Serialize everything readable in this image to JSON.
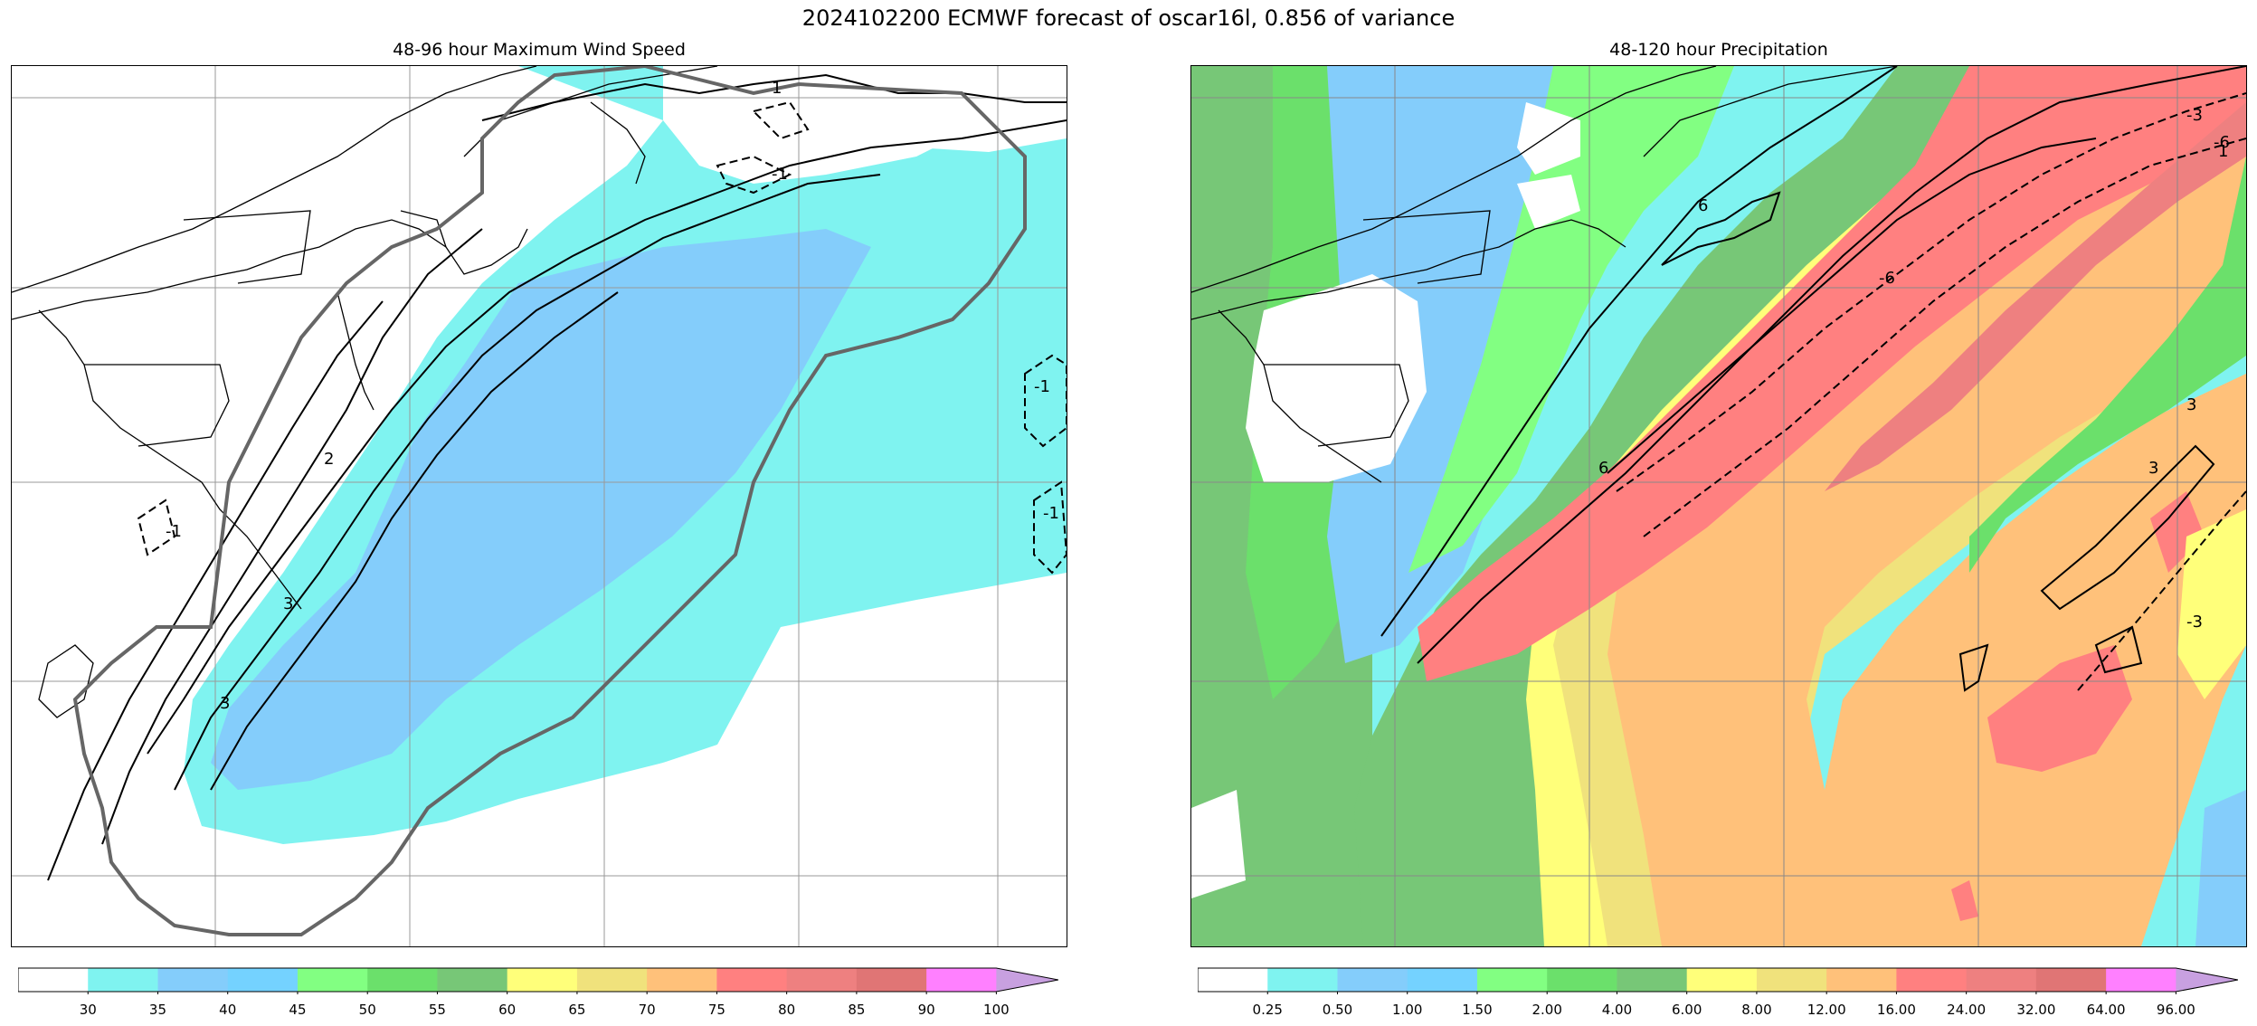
{
  "figure_title": "2024102200 ECMWF forecast of oscar16l, 0.856 of variance",
  "left_panel": {
    "title": "48-96 hour Maximum Wind Speed",
    "contour_labels": [
      "-1",
      "-1",
      "-1",
      "-1",
      "1",
      "2",
      "3",
      "3"
    ],
    "colorbar": {
      "ticks": [
        "30",
        "35",
        "40",
        "45",
        "50",
        "55",
        "60",
        "65",
        "70",
        "75",
        "80",
        "85",
        "90",
        "100"
      ],
      "colors": [
        "#ffffff",
        "#7ff3f0",
        "#84cdfb",
        "#74d2ff",
        "#82ff82",
        "#6be06b",
        "#77c777",
        "#ffff7a",
        "#f0e27c",
        "#ffc17a",
        "#ff8080",
        "#ee8080",
        "#e07575",
        "#ff80ff",
        "#c8a0e0"
      ]
    }
  },
  "right_panel": {
    "title": "48-120 hour Precipitation",
    "contour_labels": [
      "-6",
      "-3",
      "-3",
      "-6",
      "3",
      "3",
      "6",
      "6",
      "1"
    ],
    "colorbar": {
      "ticks": [
        "0.25",
        "0.50",
        "1.00",
        "1.50",
        "2.00",
        "4.00",
        "6.00",
        "8.00",
        "12.00",
        "16.00",
        "24.00",
        "32.00",
        "64.00",
        "96.00"
      ],
      "colors": [
        "#ffffff",
        "#7ff3f0",
        "#84cdfb",
        "#74d2ff",
        "#82ff82",
        "#6be06b",
        "#77c777",
        "#ffff7a",
        "#f0e27c",
        "#ffc17a",
        "#ff8080",
        "#ee8080",
        "#e07575",
        "#ff80ff",
        "#c8a0e0"
      ]
    }
  }
}
